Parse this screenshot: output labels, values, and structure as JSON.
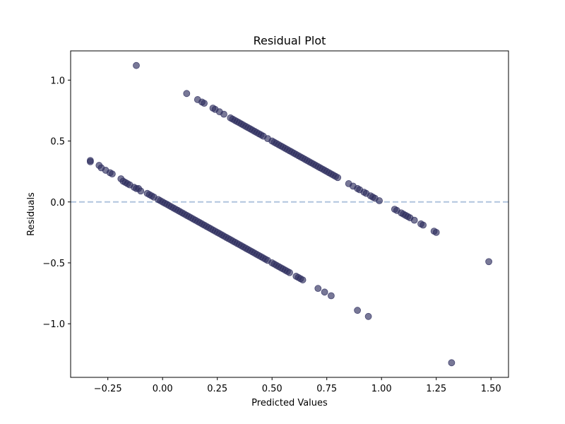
{
  "chart_data": {
    "type": "scatter",
    "title": "Residual Plot",
    "xlabel": "Predicted Values",
    "ylabel": "Residuals",
    "xlim": [
      -0.42,
      1.58
    ],
    "ylim": [
      -1.44,
      1.24
    ],
    "xticks": [
      -0.25,
      0.0,
      0.25,
      0.5,
      0.75,
      1.0,
      1.25,
      1.5
    ],
    "xtick_labels": [
      "−0.25",
      "0.00",
      "0.25",
      "0.50",
      "0.75",
      "1.00",
      "1.25",
      "1.50"
    ],
    "yticks": [
      -1.0,
      -0.5,
      0.0,
      0.5,
      1.0
    ],
    "ytick_labels": [
      "−1.0",
      "−0.5",
      "0.0",
      "0.5",
      "1.0"
    ],
    "grid": false,
    "reference_line": {
      "y": 0.0,
      "style": "dashed"
    },
    "colors": {
      "points": "#2f3060",
      "reference_line": "#b0c4de",
      "axes": "#000000"
    },
    "series": [
      {
        "x": [
          -0.33,
          -0.33,
          -0.29,
          -0.28,
          -0.26,
          -0.24,
          -0.23,
          -0.19,
          -0.18,
          -0.17,
          -0.16,
          -0.15,
          -0.13,
          -0.12,
          -0.11,
          -0.1,
          -0.07,
          -0.06,
          -0.05,
          -0.04,
          -0.02,
          -0.01,
          0.0,
          0.01,
          0.02,
          0.03,
          0.04,
          0.05,
          0.06,
          0.07,
          0.08,
          0.09,
          0.1,
          0.11,
          0.12,
          0.13,
          0.14,
          0.15,
          0.16,
          0.17,
          0.18,
          0.19,
          0.2,
          0.21,
          0.22,
          0.23,
          0.24,
          0.25,
          0.26,
          0.27,
          0.28,
          0.29,
          0.3,
          0.31,
          0.32,
          0.33,
          0.34,
          0.35,
          0.36,
          0.37,
          0.38,
          0.39,
          0.4,
          0.41,
          0.42,
          0.43,
          0.44,
          0.45,
          0.46,
          0.47,
          0.48,
          0.5,
          0.51,
          0.52,
          0.53,
          0.54,
          0.55,
          0.56,
          0.57,
          0.58,
          0.61,
          0.62,
          0.63,
          0.64,
          0.71,
          0.74,
          0.77,
          0.89,
          0.94,
          0.11,
          0.16,
          0.18,
          0.19,
          0.23,
          0.24,
          0.26,
          0.28,
          0.31,
          0.32,
          0.33,
          0.34,
          0.35,
          0.36,
          0.37,
          0.38,
          0.39,
          0.4,
          0.41,
          0.42,
          0.43,
          0.44,
          0.45,
          0.46,
          0.48,
          0.5,
          0.51,
          0.52,
          0.53,
          0.54,
          0.55,
          0.56,
          0.57,
          0.58,
          0.59,
          0.6,
          0.61,
          0.62,
          0.63,
          0.64,
          0.65,
          0.66,
          0.67,
          0.68,
          0.69,
          0.7,
          0.71,
          0.72,
          0.73,
          0.74,
          0.75,
          0.76,
          0.77,
          0.78,
          0.79,
          0.8,
          0.85,
          0.87,
          0.89,
          0.9,
          0.92,
          0.93,
          0.95,
          0.96,
          0.97,
          0.99,
          1.06,
          1.07,
          1.09,
          1.1,
          1.11,
          1.12,
          1.13,
          1.15,
          1.18,
          1.19,
          1.24,
          1.25,
          -0.12,
          1.32,
          1.49
        ],
        "y": [
          0.34,
          0.33,
          0.3,
          0.28,
          0.26,
          0.24,
          0.23,
          0.19,
          0.17,
          0.16,
          0.15,
          0.14,
          0.12,
          0.11,
          0.11,
          0.09,
          0.07,
          0.06,
          0.05,
          0.04,
          0.02,
          0.01,
          0.0,
          -0.01,
          -0.02,
          -0.03,
          -0.04,
          -0.05,
          -0.06,
          -0.07,
          -0.08,
          -0.09,
          -0.1,
          -0.11,
          -0.12,
          -0.13,
          -0.14,
          -0.15,
          -0.16,
          -0.17,
          -0.18,
          -0.19,
          -0.2,
          -0.21,
          -0.22,
          -0.23,
          -0.24,
          -0.25,
          -0.26,
          -0.27,
          -0.28,
          -0.29,
          -0.3,
          -0.31,
          -0.32,
          -0.33,
          -0.34,
          -0.35,
          -0.36,
          -0.37,
          -0.38,
          -0.39,
          -0.4,
          -0.41,
          -0.42,
          -0.43,
          -0.44,
          -0.45,
          -0.46,
          -0.47,
          -0.48,
          -0.5,
          -0.51,
          -0.52,
          -0.53,
          -0.54,
          -0.55,
          -0.56,
          -0.57,
          -0.58,
          -0.61,
          -0.62,
          -0.63,
          -0.64,
          -0.71,
          -0.74,
          -0.77,
          -0.89,
          -0.94,
          0.89,
          0.84,
          0.82,
          0.81,
          0.77,
          0.76,
          0.74,
          0.72,
          0.69,
          0.68,
          0.67,
          0.66,
          0.65,
          0.64,
          0.63,
          0.62,
          0.61,
          0.6,
          0.59,
          0.58,
          0.57,
          0.56,
          0.55,
          0.54,
          0.52,
          0.5,
          0.49,
          0.48,
          0.47,
          0.46,
          0.45,
          0.44,
          0.43,
          0.42,
          0.41,
          0.4,
          0.39,
          0.38,
          0.37,
          0.36,
          0.35,
          0.34,
          0.33,
          0.32,
          0.31,
          0.3,
          0.29,
          0.28,
          0.27,
          0.26,
          0.25,
          0.24,
          0.23,
          0.22,
          0.21,
          0.2,
          0.15,
          0.13,
          0.11,
          0.1,
          0.08,
          0.07,
          0.05,
          0.04,
          0.03,
          0.01,
          -0.06,
          -0.07,
          -0.09,
          -0.1,
          -0.11,
          -0.12,
          -0.13,
          -0.15,
          -0.18,
          -0.19,
          -0.24,
          -0.25,
          1.12,
          -1.32,
          -0.49
        ]
      }
    ]
  }
}
